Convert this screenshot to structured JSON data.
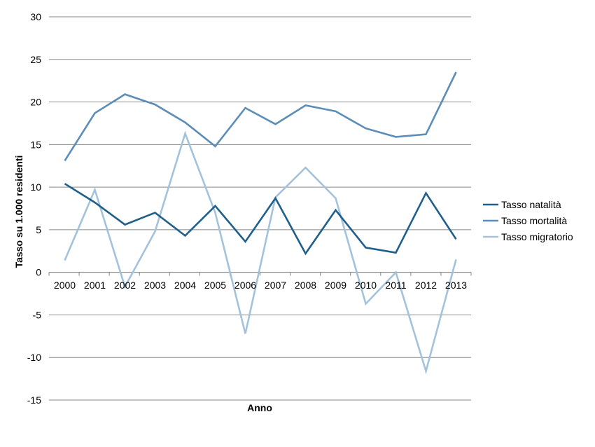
{
  "chart_data": {
    "type": "line",
    "title": "",
    "xlabel": "Anno",
    "ylabel": "Tasso su 1.000 residenti",
    "ylim": [
      -15,
      30
    ],
    "yticks": [
      30,
      25,
      20,
      15,
      10,
      5,
      0,
      -5,
      -10,
      -15
    ],
    "grid": true,
    "legend_position": "right",
    "categories": [
      "2000",
      "2001",
      "2002",
      "2003",
      "2004",
      "2005",
      "2006",
      "2007",
      "2008",
      "2009",
      "2010",
      "2011",
      "2012",
      "2013"
    ],
    "series": [
      {
        "name": "Tasso natalità",
        "color": "#1f5f8b",
        "values": [
          10.4,
          8.2,
          5.6,
          7.0,
          4.3,
          7.8,
          3.6,
          8.7,
          2.2,
          7.3,
          2.9,
          2.3,
          9.3,
          3.9
        ]
      },
      {
        "name": "Tasso mortalità",
        "color": "#5b8db8",
        "values": [
          13.1,
          18.7,
          20.9,
          19.7,
          17.6,
          14.8,
          19.3,
          17.4,
          19.6,
          18.9,
          16.9,
          15.9,
          16.2,
          23.5
        ]
      },
      {
        "name": "Tasso migratorio",
        "color": "#a3c2dc",
        "values": [
          1.4,
          9.7,
          -1.7,
          4.8,
          16.3,
          7.0,
          -7.2,
          8.8,
          12.3,
          8.7,
          -3.7,
          0.0,
          -11.6,
          1.5
        ]
      }
    ]
  }
}
